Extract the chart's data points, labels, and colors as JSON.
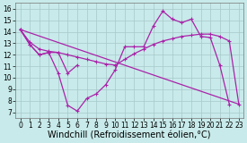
{
  "xlabel": "Windchill (Refroidissement éolien,°C)",
  "background_color": "#c8eaea",
  "grid_color": "#a8c8c8",
  "line_color": "#aa22aa",
  "xlim": [
    -0.5,
    23.5
  ],
  "ylim": [
    6.5,
    16.5
  ],
  "xticks": [
    0,
    1,
    2,
    3,
    4,
    5,
    6,
    7,
    8,
    9,
    10,
    11,
    12,
    13,
    14,
    15,
    16,
    17,
    18,
    19,
    20,
    21,
    22,
    23
  ],
  "yticks": [
    7,
    8,
    9,
    10,
    11,
    12,
    13,
    14,
    15,
    16
  ],
  "curve1_x": [
    0,
    1,
    2,
    3,
    4,
    5,
    6,
    7,
    8,
    9,
    10,
    11,
    12,
    13,
    14,
    15,
    16,
    17,
    18,
    19,
    20,
    21,
    22
  ],
  "curve1_y": [
    14.2,
    12.9,
    12.0,
    12.2,
    10.4,
    7.6,
    7.1,
    8.2,
    8.6,
    9.4,
    10.7,
    12.7,
    12.7,
    12.7,
    14.5,
    15.8,
    15.1,
    14.8,
    15.1,
    13.6,
    13.5,
    11.1,
    7.7
  ],
  "curve2_x": [
    0,
    1,
    2,
    3,
    4,
    5,
    6
  ],
  "curve2_y": [
    14.2,
    12.9,
    12.0,
    12.2,
    12.2,
    10.4,
    11.1
  ],
  "curve3_x": [
    0,
    1,
    2,
    3,
    4,
    5,
    6,
    7,
    8,
    9,
    10,
    11,
    12,
    13,
    14,
    15,
    16,
    17,
    18,
    19,
    20,
    21,
    22,
    23
  ],
  "curve3_y": [
    14.2,
    13.1,
    12.5,
    12.3,
    12.2,
    12.0,
    11.8,
    11.6,
    11.4,
    11.2,
    11.1,
    11.6,
    12.1,
    12.5,
    12.9,
    13.2,
    13.4,
    13.6,
    13.7,
    13.8,
    13.8,
    13.6,
    13.2,
    7.7
  ],
  "curve4_x": [
    0,
    23
  ],
  "curve4_y": [
    14.2,
    7.7
  ],
  "ticklabel_fontsize": 5.5,
  "xlabel_fontsize": 7.0,
  "lw": 0.9
}
